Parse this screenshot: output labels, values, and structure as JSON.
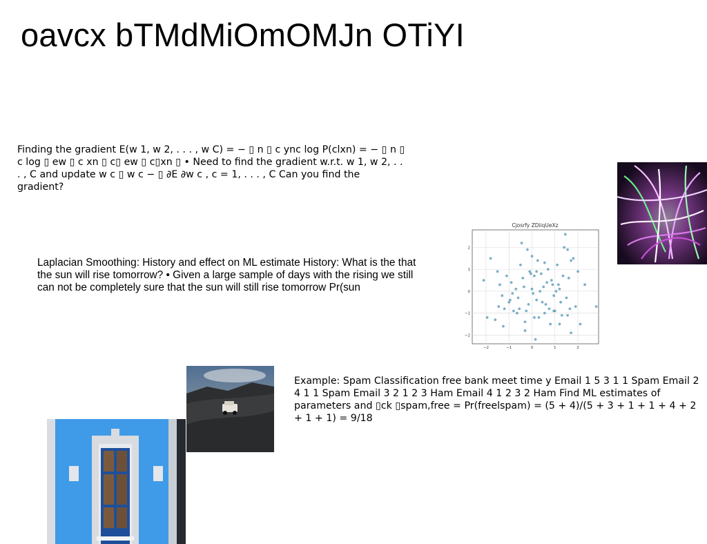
{
  "slide": {
    "title": "oavcx  bTMdMiOmOMJn OTiYI",
    "paragraph_1": "Finding the gradient E(w 1, w 2, . . . , w C) = − ▯ n ▯ c ync log P(clxn) = − ▯ n ▯ c log ▯ ew ▯ c xn ▯ c▯ ew ▯ c▯xn ▯ • Need to find the gradient w.r.t. w 1, w 2, . . . , C and update w c ▯ w c − ▯ ∂E ∂w c , c = 1, . . . , C Can you find the gradient?",
    "paragraph_2": "Laplacian Smoothing: History and effect on ML estimate History: What is the that the sun will rise tomorrow? • Given a large sample of days with the rising we still can not be completely sure that the sun will still rise tomorrow Pr(sun",
    "paragraph_3": "Example: Spam Classification free bank meet time y Email 1 5 3 1 1 Spam Email 2 4 1 1 Spam Email 3 2 1 2 3 Ham Email 4 1 2 3 2 Ham Find ML estimates of parameters and ▯ck ▯spam,free = Pr(freelspam) = (5 + 4)/(5 + 3 + 1 + 1 + 4 + 2 + 1 + 1) = 9/18"
  },
  "colors": {
    "point": "#5b9bb8",
    "grid": "#d8d8d8"
  },
  "chart_data": {
    "type": "scatter",
    "title": "Cjosrfy ZDiiqUeXz",
    "xlabel": "",
    "ylabel": "",
    "xlim": [
      -2.6,
      2.9
    ],
    "ylim": [
      -2.4,
      2.8
    ],
    "x_ticks": [
      -2,
      -1,
      0,
      1,
      2
    ],
    "y_ticks": [
      -2,
      -1,
      0,
      1,
      2
    ],
    "grid": true,
    "points": [
      [
        -2.1,
        0.5
      ],
      [
        -1.8,
        1.5
      ],
      [
        -1.5,
        0.9
      ],
      [
        -1.4,
        0.3
      ],
      [
        -1.3,
        -0.2
      ],
      [
        -1.2,
        -0.8
      ],
      [
        -1.0,
        -0.5
      ],
      [
        -0.9,
        0.4
      ],
      [
        -0.8,
        -0.9
      ],
      [
        -0.7,
        0.1
      ],
      [
        -0.6,
        -0.3
      ],
      [
        -0.5,
        1.2
      ],
      [
        -0.4,
        0.6
      ],
      [
        -0.3,
        -1.4
      ],
      [
        -0.2,
        1.9
      ],
      [
        -0.1,
        0.9
      ],
      [
        0.0,
        1.6
      ],
      [
        0.1,
        0.7
      ],
      [
        0.2,
        -0.4
      ],
      [
        0.3,
        -1.2
      ],
      [
        0.4,
        0.8
      ],
      [
        0.5,
        0.2
      ],
      [
        0.6,
        -0.6
      ],
      [
        0.7,
        1.0
      ],
      [
        0.8,
        -1.5
      ],
      [
        0.9,
        0.3
      ],
      [
        1.0,
        -0.9
      ],
      [
        1.1,
        1.2
      ],
      [
        1.2,
        0.1
      ],
      [
        1.3,
        -1.1
      ],
      [
        1.4,
        2.0
      ],
      [
        1.5,
        -0.3
      ],
      [
        1.6,
        0.6
      ],
      [
        1.7,
        -1.9
      ],
      [
        1.8,
        1.5
      ],
      [
        1.9,
        -0.7
      ],
      [
        2.0,
        0.9
      ],
      [
        2.3,
        0.3
      ],
      [
        2.8,
        -0.7
      ],
      [
        -1.6,
        -1.3
      ],
      [
        -1.1,
        0.7
      ],
      [
        -0.65,
        -1.0
      ],
      [
        -0.35,
        0.2
      ],
      [
        0.05,
        -0.1
      ],
      [
        0.25,
        1.4
      ],
      [
        0.55,
        -1.0
      ],
      [
        0.85,
        0.5
      ],
      [
        1.25,
        -0.5
      ],
      [
        1.55,
        1.9
      ],
      [
        0.15,
        -2.2
      ],
      [
        -0.45,
        2.2
      ],
      [
        1.45,
        2.6
      ],
      [
        -1.25,
        -1.6
      ],
      [
        -0.15,
        -0.6
      ],
      [
        0.35,
        0.0
      ],
      [
        0.65,
        0.4
      ],
      [
        0.95,
        -0.2
      ],
      [
        1.15,
        0.3
      ],
      [
        -0.85,
        -0.1
      ],
      [
        -0.55,
        -0.8
      ],
      [
        -0.25,
        -0.9
      ],
      [
        0.45,
        -0.5
      ],
      [
        0.75,
        -0.8
      ],
      [
        1.05,
        0.0
      ],
      [
        1.35,
        0.7
      ],
      [
        1.65,
        -0.8
      ],
      [
        -1.95,
        -1.2
      ],
      [
        -0.95,
        -0.4
      ],
      [
        -0.05,
        0.8
      ],
      [
        0.2,
        0.9
      ],
      [
        0.55,
        1.3
      ],
      [
        1.2,
        -1.5
      ],
      [
        1.7,
        1.4
      ],
      [
        2.1,
        -1.5
      ],
      [
        0.0,
        0.1
      ],
      [
        0.1,
        -1.2
      ],
      [
        -0.3,
        -1.8
      ],
      [
        0.95,
        -0.9
      ],
      [
        1.55,
        -1.1
      ],
      [
        -1.45,
        -0.7
      ]
    ]
  }
}
